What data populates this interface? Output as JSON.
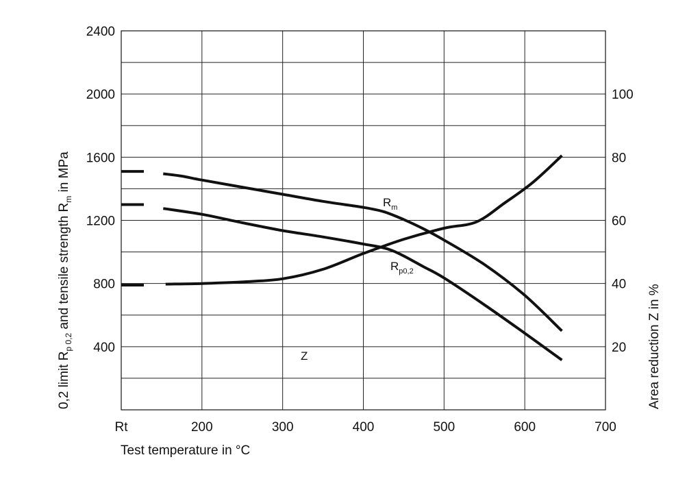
{
  "chart_data": {
    "type": "line",
    "xlabel": "Test temperature in °C",
    "ylabel_left": {
      "parts": [
        {
          "text": "0,2 limit R",
          "sub": false
        },
        {
          "text": "p 0,2",
          "sub": true
        },
        {
          "text": " and tensile strength R",
          "sub": false
        },
        {
          "text": "m",
          "sub": true
        },
        {
          "text": " in MPa",
          "sub": false
        }
      ]
    },
    "ylabel_right": "Area reduction Z in %",
    "x_ticks": [
      {
        "value": 100,
        "label": "Rt"
      },
      {
        "value": 200,
        "label": "200"
      },
      {
        "value": 300,
        "label": "300"
      },
      {
        "value": 400,
        "label": "400"
      },
      {
        "value": 500,
        "label": "500"
      },
      {
        "value": 600,
        "label": "600"
      },
      {
        "value": 700,
        "label": "700"
      }
    ],
    "xlim": [
      100,
      700
    ],
    "ylim_left": [
      0,
      2400
    ],
    "y_ticks_left": [
      "400",
      "800",
      "1200",
      "1600",
      "2000",
      "2400"
    ],
    "ylim_right": [
      0,
      120
    ],
    "y_ticks_right": [
      "20",
      "40",
      "60",
      "80",
      "100"
    ],
    "grid": true,
    "series": [
      {
        "label_main": "R",
        "label_sub": "m",
        "axis": "left",
        "rt_value": 1510,
        "x": [
          152,
          175,
          200,
          250,
          300,
          350,
          400,
          425,
          450,
          475,
          500,
          550,
          600,
          646
        ],
        "y": [
          1495,
          1480,
          1455,
          1410,
          1365,
          1320,
          1282,
          1255,
          1205,
          1145,
          1075,
          920,
          725,
          500
        ]
      },
      {
        "label_main": "R",
        "label_sub": "p0,2",
        "axis": "left",
        "rt_value": 1300,
        "x": [
          152,
          200,
          250,
          300,
          350,
          400,
          435,
          475,
          500,
          550,
          600,
          646
        ],
        "y": [
          1275,
          1238,
          1185,
          1135,
          1095,
          1050,
          1010,
          905,
          835,
          665,
          485,
          315
        ]
      },
      {
        "label_main": "Z",
        "label_sub": "",
        "axis": "right",
        "rt_value": 39.5,
        "x": [
          155,
          200,
          250,
          300,
          350,
          400,
          450,
          500,
          540,
          575,
          610,
          646
        ],
        "y": [
          39.8,
          40.0,
          40.5,
          41.5,
          44.5,
          49.5,
          54.0,
          57.5,
          59.5,
          65.5,
          72.0,
          80.5
        ]
      }
    ]
  }
}
